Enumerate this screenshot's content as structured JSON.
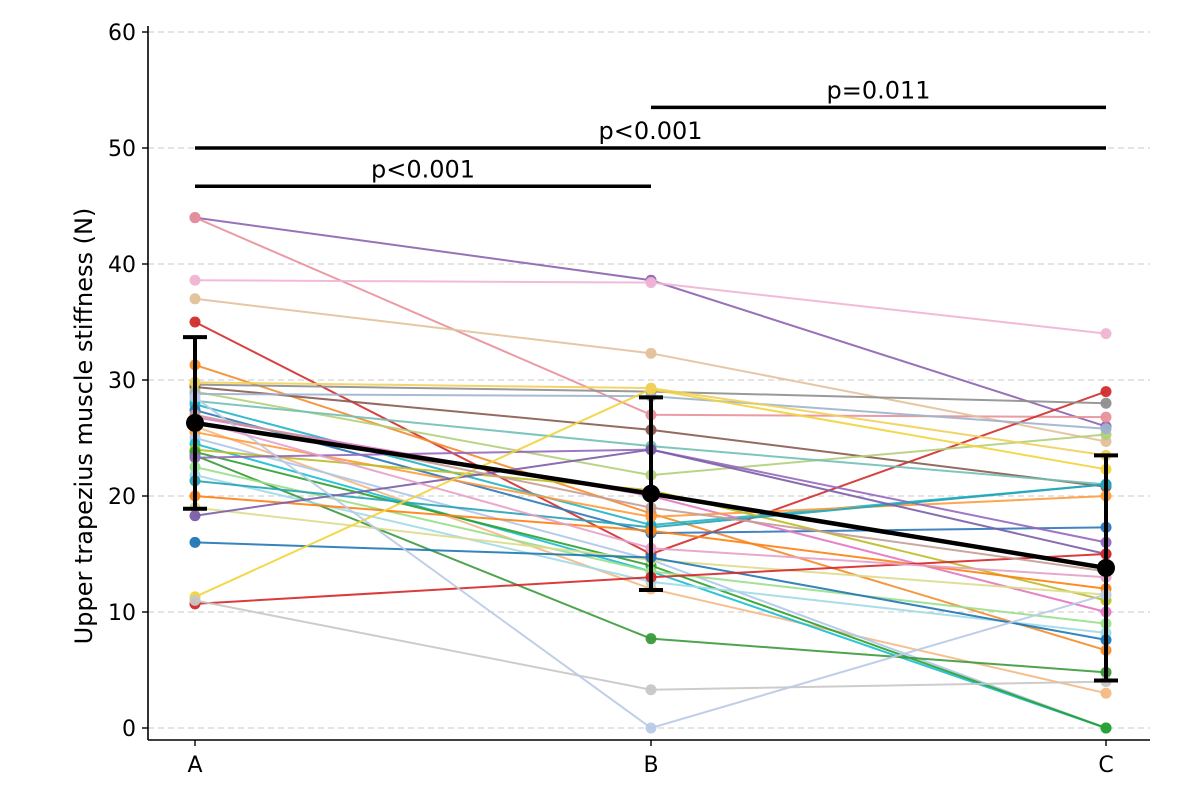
{
  "chart_data": {
    "type": "line",
    "title": "",
    "xlabel": "",
    "ylabel": "Upper trapezius muscle stiffness (N)",
    "categories": [
      "A",
      "B",
      "C"
    ],
    "ylim": [
      0,
      60
    ],
    "yticks": [
      0,
      10,
      20,
      30,
      40,
      50,
      60
    ],
    "grid": "horizontal dashed",
    "legend": "none",
    "subjects": [
      {
        "values": [
          44.0,
          38.6,
          26.0
        ],
        "color": "#8c63b0"
      },
      {
        "values": [
          44.0,
          27.0,
          26.8
        ],
        "color": "#e8909a"
      },
      {
        "values": [
          38.6,
          38.4,
          34.0
        ],
        "color": "#f0b4d4"
      },
      {
        "values": [
          37.0,
          32.3,
          24.7
        ],
        "color": "#e3c19a"
      },
      {
        "values": [
          35.0,
          15.0,
          29.0
        ],
        "color": "#d22c2c"
      },
      {
        "values": [
          31.3,
          18.5,
          6.7
        ],
        "color": "#f58b2b"
      },
      {
        "values": [
          29.6,
          29.0,
          28.0
        ],
        "color": "#8e8e8e"
      },
      {
        "values": [
          29.4,
          25.7,
          20.8
        ],
        "color": "#8a5a4f"
      },
      {
        "values": [
          29.0,
          21.8,
          25.3
        ],
        "color": "#b2cf7a"
      },
      {
        "values": [
          28.8,
          28.6,
          25.8
        ],
        "color": "#9fb3cc"
      },
      {
        "values": [
          28.2,
          24.3,
          21.0
        ],
        "color": "#70c0b6"
      },
      {
        "values": [
          27.9,
          17.5,
          21.0
        ],
        "color": "#1fb5c8"
      },
      {
        "values": [
          27.4,
          16.8,
          17.3
        ],
        "color": "#2e77b8"
      },
      {
        "values": [
          26.8,
          20.0,
          10.0
        ],
        "color": "#e377c2"
      },
      {
        "values": [
          26.0,
          12.0,
          3.0
        ],
        "color": "#f5b884"
      },
      {
        "values": [
          25.5,
          18.2,
          20.0
        ],
        "color": "#ff9a3c"
      },
      {
        "values": [
          25.0,
          14.5,
          0.0
        ],
        "color": "#aec7e8"
      },
      {
        "values": [
          24.5,
          13.5,
          0.0
        ],
        "color": "#17becf"
      },
      {
        "values": [
          24.0,
          20.5,
          11.0
        ],
        "color": "#bcbd22"
      },
      {
        "values": [
          23.8,
          14.0,
          0.0
        ],
        "color": "#2ca02c"
      },
      {
        "values": [
          23.5,
          7.7,
          4.8
        ],
        "color": "#3a9a3a"
      },
      {
        "values": [
          23.3,
          24.0,
          16.0
        ],
        "color": "#9467bd"
      },
      {
        "values": [
          22.5,
          13.5,
          9.0
        ],
        "color": "#98df8a"
      },
      {
        "values": [
          21.8,
          12.6,
          8.2
        ],
        "color": "#9edae5"
      },
      {
        "values": [
          21.3,
          17.3,
          21.0
        ],
        "color": "#27a3b5"
      },
      {
        "values": [
          20.0,
          17.0,
          12.0
        ],
        "color": "#ff7f0e"
      },
      {
        "values": [
          19.0,
          14.5,
          11.5
        ],
        "color": "#dbdb8d"
      },
      {
        "values": [
          18.3,
          24.0,
          15.0
        ],
        "color": "#7b5ea7"
      },
      {
        "values": [
          16.0,
          14.7,
          7.6
        ],
        "color": "#1f77b4"
      },
      {
        "values": [
          11.3,
          29.2,
          22.3
        ],
        "color": "#f2d43a"
      },
      {
        "values": [
          10.7,
          13.0,
          15.0
        ],
        "color": "#d62728"
      },
      {
        "values": [
          11.0,
          3.3,
          4.0
        ],
        "color": "#c7c7c7"
      },
      {
        "values": [
          28.5,
          0.0,
          11.5
        ],
        "color": "#b9c9e6"
      },
      {
        "values": [
          29.8,
          29.3,
          23.5
        ],
        "color": "#f0d05a"
      },
      {
        "values": [
          27.0,
          19.0,
          13.5
        ],
        "color": "#c49c94"
      },
      {
        "values": [
          26.5,
          15.5,
          13.0
        ],
        "color": "#e6a0c8"
      }
    ],
    "mean_series": {
      "values": [
        26.3,
        20.2,
        13.8
      ],
      "error": [
        7.4,
        8.3,
        9.7
      ],
      "color": "#000000"
    },
    "significance": [
      {
        "from": "A",
        "to": "B",
        "y": 46.7,
        "label": "p<0.001"
      },
      {
        "from": "A",
        "to": "C",
        "y": 50.0,
        "label": "p<0.001"
      },
      {
        "from": "B",
        "to": "C",
        "y": 53.5,
        "label": "p=0.011"
      }
    ]
  }
}
